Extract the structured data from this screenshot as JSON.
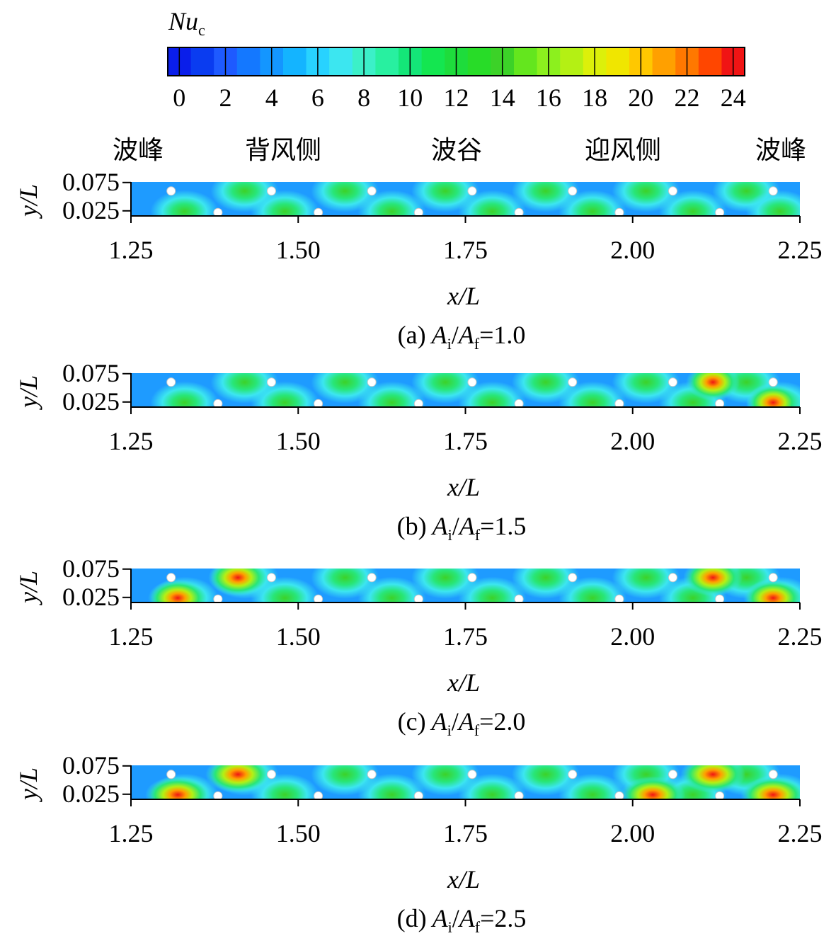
{
  "colorbar": {
    "title": "Nu",
    "title_sub": "c",
    "lim": [
      -0.5,
      24.5
    ],
    "ticks": [
      0,
      2,
      4,
      6,
      8,
      10,
      12,
      14,
      16,
      18,
      20,
      22,
      24
    ],
    "colors": [
      "#0a1eea",
      "#0a3cf0",
      "#1e5aff",
      "#1478ff",
      "#1496ff",
      "#14b4ff",
      "#28d2ff",
      "#3ce6f0",
      "#3cf0c8",
      "#28f0a0",
      "#14e678",
      "#14e650",
      "#1edc3c",
      "#28dc28",
      "#3cd228",
      "#64e61e",
      "#8cf01e",
      "#b4f014",
      "#dcf00a",
      "#f0e600",
      "#ffc800",
      "#ffa000",
      "#ff7800",
      "#ff4600",
      "#f01414"
    ]
  },
  "wave_labels": [
    "波峰",
    "背风侧",
    "波谷",
    "迎风侧",
    "波峰"
  ],
  "ratio_symbol": [
    "A",
    "i",
    "/",
    "A",
    "f",
    "="
  ],
  "panels": [
    {
      "tag": "(a)",
      "ratio": "1.0",
      "xlabel": "x/L",
      "ylabel": "y/L",
      "xlim": [
        1.25,
        2.25
      ],
      "xticks": [
        1.25,
        {
          "value": 1.5,
          "label": "1.50"
        },
        1.75,
        {
          "value": 2,
          "label": "2.00"
        },
        2.25
      ],
      "ylim": [
        0.016,
        0.076
      ],
      "yticks": [
        0.025,
        0.075
      ]
    },
    {
      "tag": "(b)",
      "ratio": "1.5",
      "xlabel": "x/L",
      "ylabel": "y/L",
      "xlim": [
        1.25,
        2.25
      ],
      "xticks": [
        1.25,
        {
          "value": 1.5,
          "label": "1.50"
        },
        1.75,
        {
          "value": 2,
          "label": "2.00"
        },
        2.25
      ],
      "ylim": [
        0.016,
        0.076
      ],
      "yticks": [
        0.025,
        0.075
      ]
    },
    {
      "tag": "(c)",
      "ratio": "2.0",
      "xlabel": "x/L",
      "ylabel": "y/L",
      "xlim": [
        1.25,
        2.25
      ],
      "xticks": [
        1.25,
        {
          "value": 1.5,
          "label": "1.50"
        },
        1.75,
        {
          "value": 2,
          "label": "2.00"
        },
        2.25
      ],
      "ylim": [
        0.016,
        0.076
      ],
      "yticks": [
        0.025,
        0.075
      ]
    },
    {
      "tag": "(d)",
      "ratio": "2.5",
      "xlabel": "x/L",
      "ylabel": "y/L",
      "xlim": [
        1.25,
        2.25
      ],
      "xticks": [
        1.25,
        {
          "value": 1.5,
          "label": "1.50"
        },
        1.75,
        {
          "value": 2,
          "label": "2.00"
        },
        2.25
      ],
      "ylim": [
        0.016,
        0.076
      ],
      "yticks": [
        0.025,
        0.075
      ]
    }
  ]
}
